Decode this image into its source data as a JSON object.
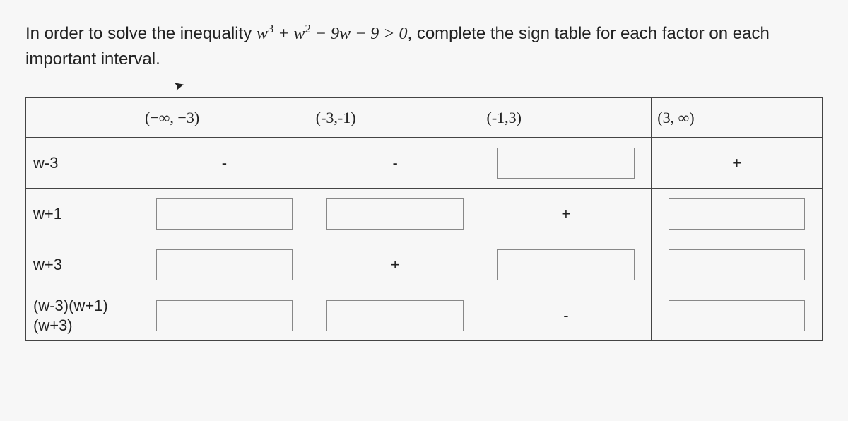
{
  "prompt": {
    "prefix": "In order to solve the inequality ",
    "suffix": ", complete the sign table for each factor on each important interval.",
    "equation_html": "w³ + w² − 9w − 9 > 0"
  },
  "table": {
    "headers": [
      "",
      "(−∞, −3)",
      "(-3,-1)",
      "(-1,3)",
      "(3, ∞)"
    ],
    "rows": [
      {
        "label": "w-3",
        "cells": [
          {
            "kind": "static",
            "value": "-"
          },
          {
            "kind": "static",
            "value": "-"
          },
          {
            "kind": "input",
            "value": ""
          },
          {
            "kind": "static",
            "value": "+"
          }
        ]
      },
      {
        "label": "w+1",
        "cells": [
          {
            "kind": "input",
            "value": ""
          },
          {
            "kind": "input",
            "value": ""
          },
          {
            "kind": "static",
            "value": "+"
          },
          {
            "kind": "input",
            "value": ""
          }
        ]
      },
      {
        "label": "w+3",
        "cells": [
          {
            "kind": "input",
            "value": ""
          },
          {
            "kind": "static",
            "value": "+"
          },
          {
            "kind": "input",
            "value": ""
          },
          {
            "kind": "input",
            "value": ""
          }
        ]
      },
      {
        "label": "(w-3)(w+1)\n(w+3)",
        "cells": [
          {
            "kind": "input",
            "value": ""
          },
          {
            "kind": "input",
            "value": ""
          },
          {
            "kind": "static",
            "value": "-"
          },
          {
            "kind": "input",
            "value": ""
          }
        ]
      }
    ]
  },
  "style": {
    "border_color": "#444",
    "background": "#f7f7f7",
    "text_color": "#222",
    "input_border": "#888",
    "font_size_prompt": 24,
    "font_size_header": 22,
    "font_size_label": 22,
    "font_size_sign": 22
  }
}
